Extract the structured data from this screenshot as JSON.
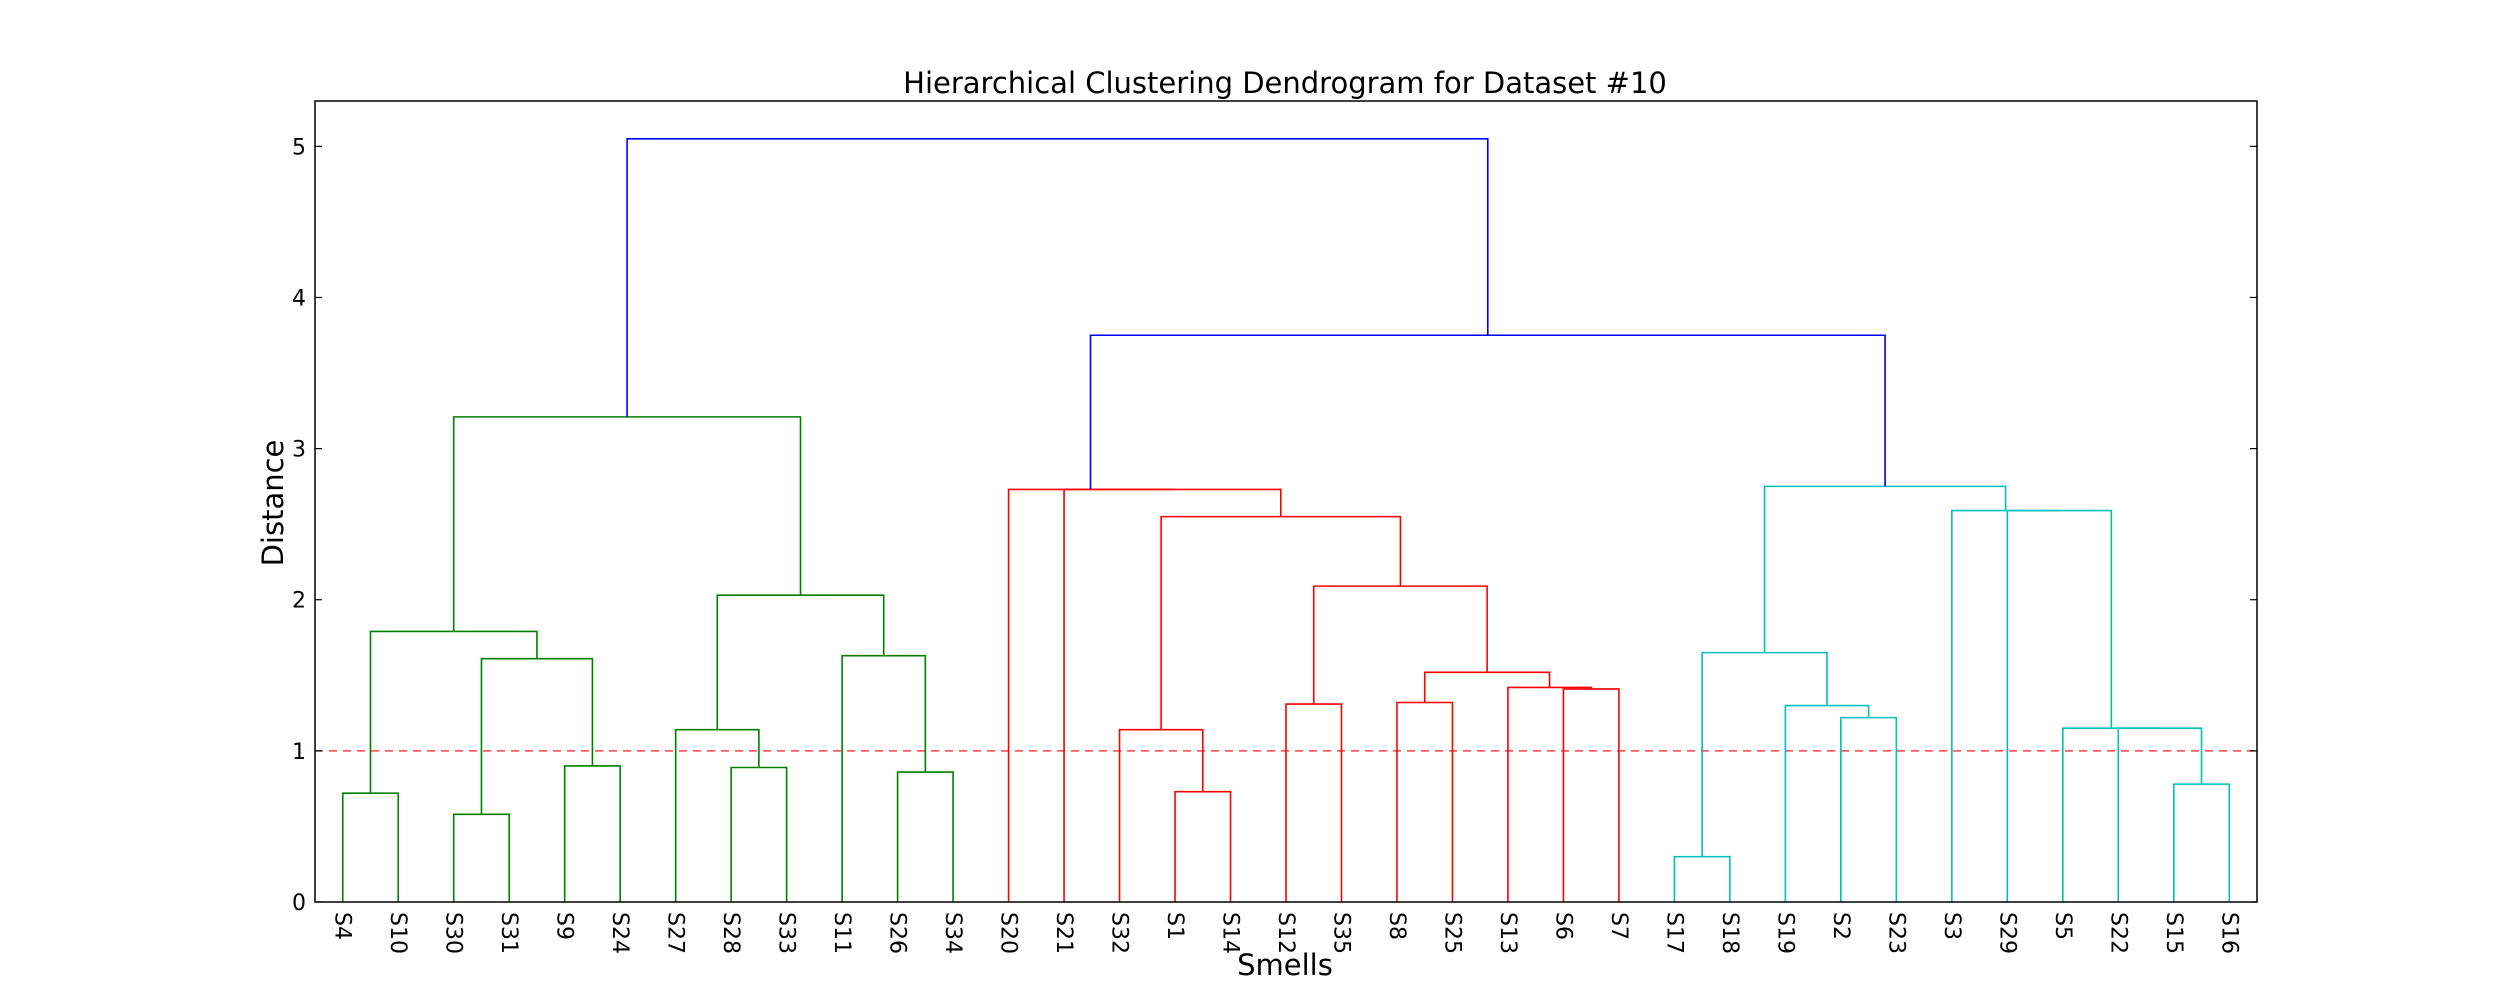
{
  "chart_data": {
    "type": "dendrogram",
    "title": "Hierarchical Clustering Dendrogram for Dataset #10",
    "xlabel": "Smells",
    "ylabel": "Distance",
    "ylim": [
      0,
      5.3
    ],
    "yticks": [
      0,
      1,
      2,
      3,
      4,
      5
    ],
    "grid": false,
    "threshold": {
      "value": 1.0,
      "color": "#ff0000",
      "style": "dashed"
    },
    "leaves": [
      "S4",
      "S10",
      "S30",
      "S31",
      "S9",
      "S24",
      "S27",
      "S28",
      "S33",
      "S11",
      "S26",
      "S34",
      "S20",
      "S21",
      "S32",
      "S1",
      "S14",
      "S12",
      "S35",
      "S8",
      "S25",
      "S13",
      "S6",
      "S7",
      "S17",
      "S18",
      "S19",
      "S2",
      "S23",
      "S3",
      "S29",
      "S5",
      "S22",
      "S15",
      "S16"
    ],
    "colors": {
      "green": "#008000",
      "red": "#ff0000",
      "cyan": "#00bfbf",
      "blue": "#0000ff"
    },
    "links": [
      {
        "left": "S4",
        "right": "S10",
        "height": 0.72,
        "color": "green"
      },
      {
        "left": "S30",
        "right": "S31",
        "height": 0.58,
        "color": "green"
      },
      {
        "left": "S9",
        "right": "S24",
        "height": 0.9,
        "color": "green"
      },
      {
        "left": "L1",
        "right": "L2",
        "height": 1.61,
        "color": "green"
      },
      {
        "left": "L0",
        "right": "L3",
        "height": 1.79,
        "color": "green"
      },
      {
        "left": "S28",
        "right": "S33",
        "height": 0.89,
        "color": "green"
      },
      {
        "left": "S27",
        "right": "L5",
        "height": 1.14,
        "color": "green"
      },
      {
        "left": "S26",
        "right": "S34",
        "height": 0.86,
        "color": "green"
      },
      {
        "left": "S11",
        "right": "L7",
        "height": 1.63,
        "color": "green"
      },
      {
        "left": "L6",
        "right": "L8",
        "height": 2.03,
        "color": "green"
      },
      {
        "left": "L4",
        "right": "L9",
        "height": 3.21,
        "color": "green"
      },
      {
        "left": "S1",
        "right": "S14",
        "height": 0.73,
        "color": "red"
      },
      {
        "left": "S32",
        "right": "L11",
        "height": 1.14,
        "color": "red"
      },
      {
        "left": "S12",
        "right": "S35",
        "height": 1.31,
        "color": "red"
      },
      {
        "left": "S8",
        "right": "S25",
        "height": 1.32,
        "color": "red"
      },
      {
        "left": "S6",
        "right": "S7",
        "height": 1.41,
        "color": "red"
      },
      {
        "left": "S13",
        "right": "L15",
        "height": 1.42,
        "color": "red"
      },
      {
        "left": "L14",
        "right": "L16",
        "height": 1.52,
        "color": "red"
      },
      {
        "left": "L13",
        "right": "L17",
        "height": 2.09,
        "color": "red"
      },
      {
        "left": "L12",
        "right": "L18",
        "height": 2.55,
        "color": "red"
      },
      {
        "left": "S21",
        "right": "L19",
        "height": 2.73,
        "color": "red"
      },
      {
        "left": "S20",
        "right": "L20",
        "height": 2.73,
        "color": "red"
      },
      {
        "left": "S17",
        "right": "S18",
        "height": 0.3,
        "color": "cyan"
      },
      {
        "left": "S2",
        "right": "S23",
        "height": 1.22,
        "color": "cyan"
      },
      {
        "left": "S19",
        "right": "L23",
        "height": 1.3,
        "color": "cyan"
      },
      {
        "left": "L22",
        "right": "L24",
        "height": 1.65,
        "color": "cyan"
      },
      {
        "left": "S15",
        "right": "S16",
        "height": 0.78,
        "color": "cyan"
      },
      {
        "left": "S22",
        "right": "L26",
        "height": 1.15,
        "color": "cyan"
      },
      {
        "left": "S5",
        "right": "L27",
        "height": 1.15,
        "color": "cyan"
      },
      {
        "left": "S29",
        "right": "L28",
        "height": 2.59,
        "color": "cyan"
      },
      {
        "left": "S3",
        "right": "L29",
        "height": 2.59,
        "color": "cyan"
      },
      {
        "left": "L25",
        "right": "L30",
        "height": 2.75,
        "color": "cyan"
      },
      {
        "left": "L21",
        "right": "L31",
        "height": 3.75,
        "color": "blue"
      },
      {
        "left": "L10",
        "right": "L32",
        "height": 5.05,
        "color": "blue"
      }
    ]
  }
}
